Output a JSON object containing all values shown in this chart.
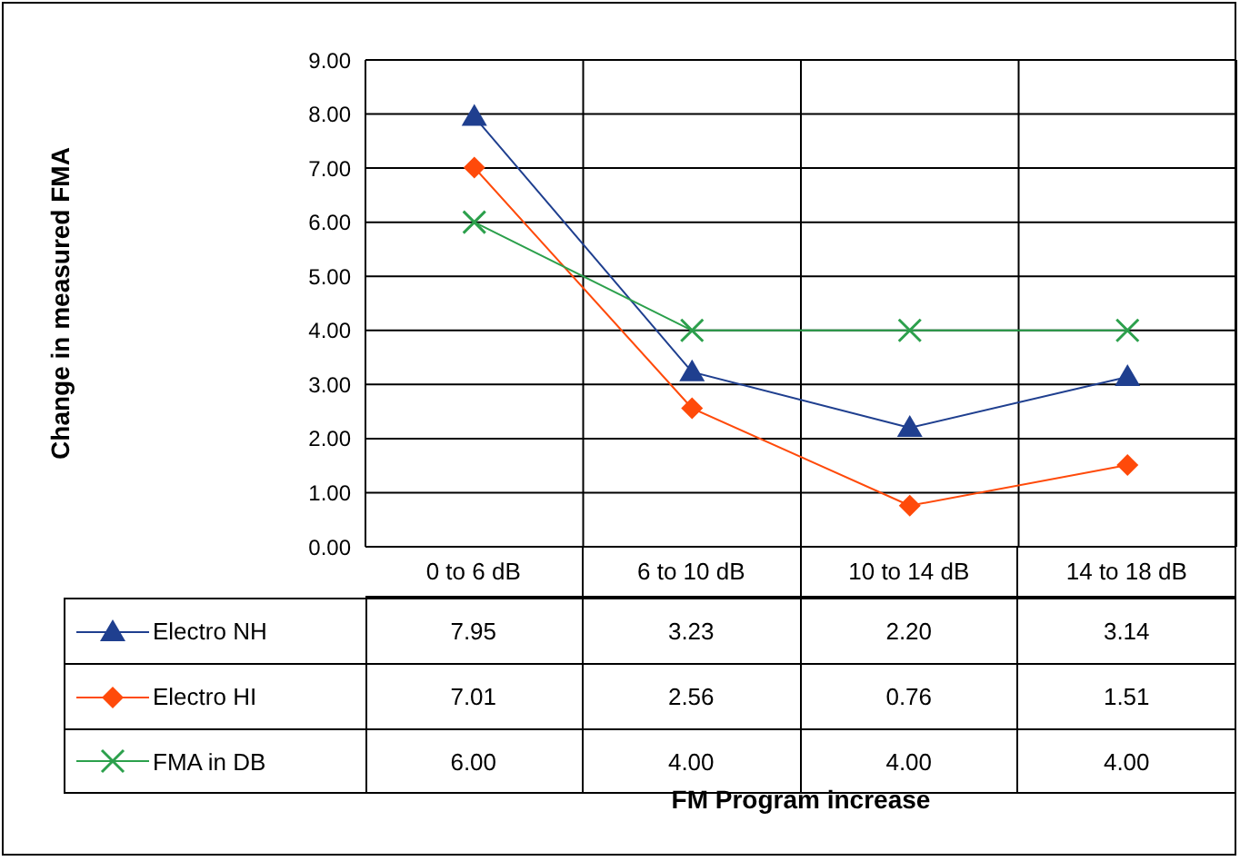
{
  "chart_data": {
    "type": "line",
    "annotations": [
      "Change in measured FMA",
      "FM Program increase"
    ],
    "categories": [
      "0 to 6 dB",
      "6 to 10 dB",
      "10 to 14 dB",
      "14 to 18 dB"
    ],
    "ylim": [
      0,
      9
    ],
    "yticks": [
      {
        "value": 0,
        "label": "0.00"
      },
      {
        "value": 1,
        "label": "1.00"
      },
      {
        "value": 2,
        "label": "2.00"
      },
      {
        "value": 3,
        "label": "3.00"
      },
      {
        "value": 4,
        "label": "4.00"
      },
      {
        "value": 5,
        "label": "5.00"
      },
      {
        "value": 6,
        "label": "6.00"
      },
      {
        "value": 7,
        "label": "7.00"
      },
      {
        "value": 8,
        "label": "8.00"
      },
      {
        "value": 9,
        "label": "9.00"
      }
    ],
    "grid": true,
    "legend": "bottom",
    "series": [
      {
        "name": "Electro NH",
        "color": "#1f3f8f",
        "marker": "triangle",
        "values": [
          7.95,
          3.23,
          2.2,
          3.14
        ],
        "value_labels": [
          "7.95",
          "3.23",
          "2.20",
          "3.14"
        ]
      },
      {
        "name": "Electro HI",
        "color": "#ff4a0a",
        "marker": "diamond",
        "values": [
          7.01,
          2.56,
          0.76,
          1.51
        ],
        "value_labels": [
          "7.01",
          "2.56",
          "0.76",
          "1.51"
        ]
      },
      {
        "name": "FMA in DB",
        "color": "#2ca04c",
        "marker": "cross",
        "values": [
          6,
          4,
          4,
          4
        ],
        "value_labels": [
          "6.00",
          "4.00",
          "4.00",
          "4.00"
        ]
      }
    ]
  }
}
